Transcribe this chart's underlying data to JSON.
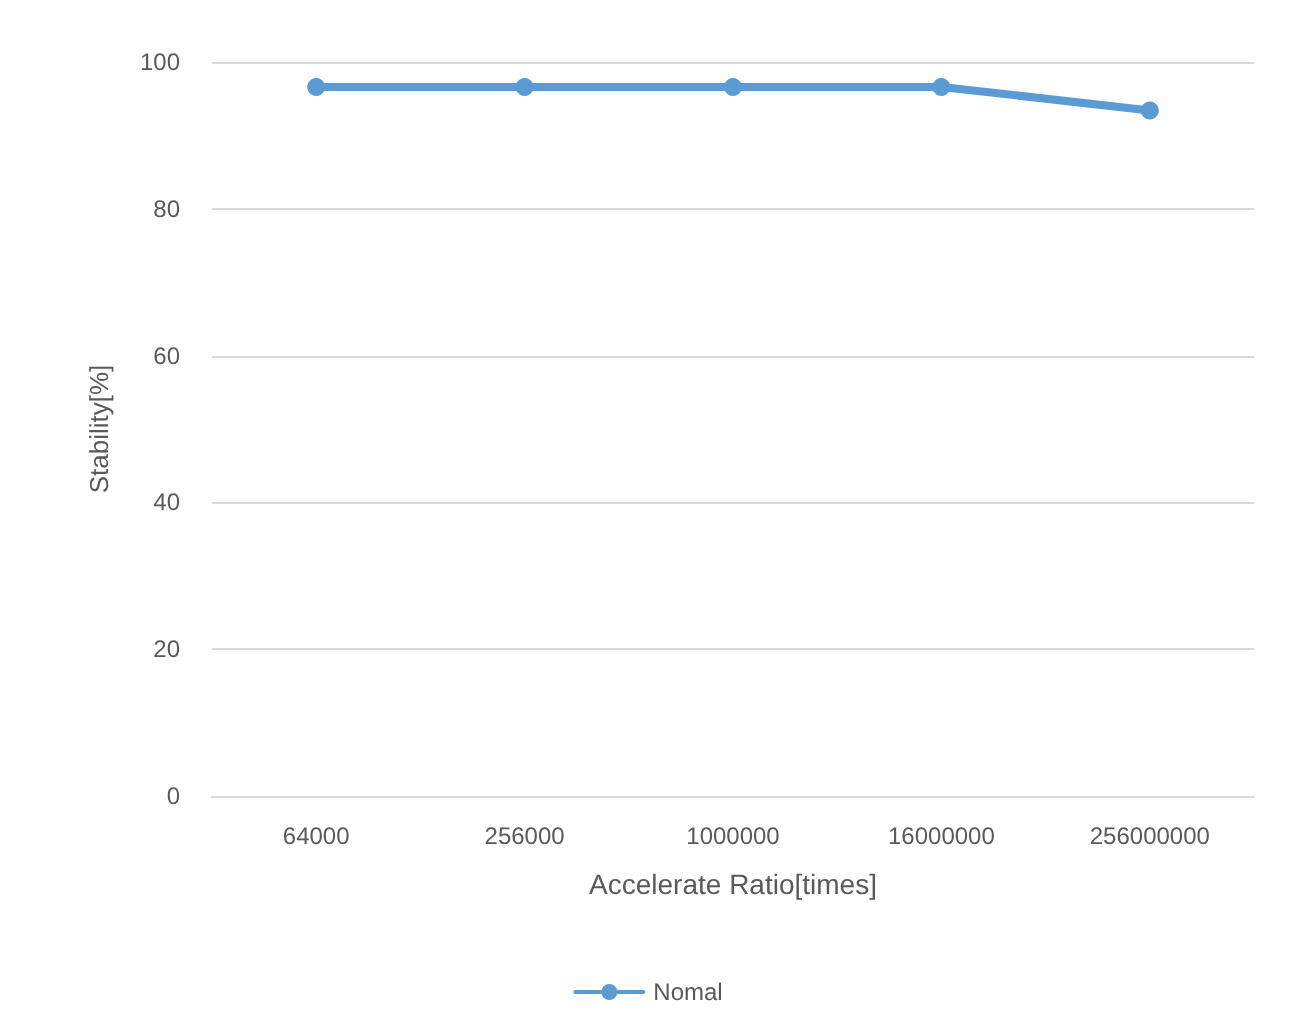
{
  "chart_data": {
    "type": "line",
    "xlabel": "Accelerate Ratio[times]",
    "ylabel": "Stability[%]",
    "categories": [
      "64000",
      "256000",
      "1000000",
      "16000000",
      "256000000"
    ],
    "series": [
      {
        "name": "Nomal",
        "color": "#5b9bd5",
        "values": [
          96.6,
          96.6,
          96.6,
          96.6,
          93.4
        ]
      }
    ],
    "ylim": [
      0,
      100
    ],
    "yticks": [
      0,
      20,
      40,
      60,
      80,
      100
    ],
    "grid": "y",
    "legend": "bottom",
    "marker": "circle",
    "line_style": "solid"
  }
}
